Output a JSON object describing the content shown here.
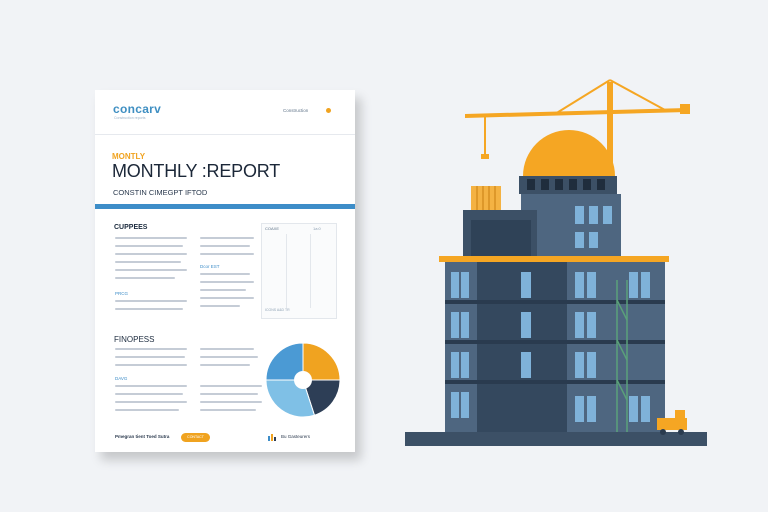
{
  "report": {
    "logo": "concarv",
    "tagline": "Construction reports",
    "header_right": "Construction",
    "subtitle": "MONTLY",
    "title": "MONTHLY :REPORT",
    "subline": "CONSTIN CIMEGPT IFTOD",
    "section_a": "CUPPEES",
    "section_b": "FINOPESS",
    "blue_heading_1": "PRCG",
    "blue_heading_2": "Dcor EST",
    "blue_heading_3": "DAVG",
    "table_title": "COAXE",
    "table_value": "1a:0",
    "table_foot": "ICONS   A&D   TR",
    "footer_left": "Pmegran tient Toed Sutra",
    "footer_button": "CONTACT",
    "footer_right": "Bu Gasteurers"
  },
  "donut_chart": {
    "segments": [
      {
        "value": 25,
        "color": "#f0a320"
      },
      {
        "value": 20,
        "color": "#2d3e56"
      },
      {
        "value": 30,
        "color": "#7fc0e6"
      },
      {
        "value": 25,
        "color": "#4b9ad4"
      }
    ]
  },
  "colors": {
    "accent_orange": "#f5a623",
    "accent_blue": "#3d8dc8",
    "building_dark": "#3c5066",
    "building_mid": "#4e6680",
    "window": "#7fb2d9",
    "background": "#f1f3f6"
  },
  "icons": [
    "crane-icon",
    "dome-icon",
    "construction-vehicle-icon",
    "building-illustration"
  ]
}
